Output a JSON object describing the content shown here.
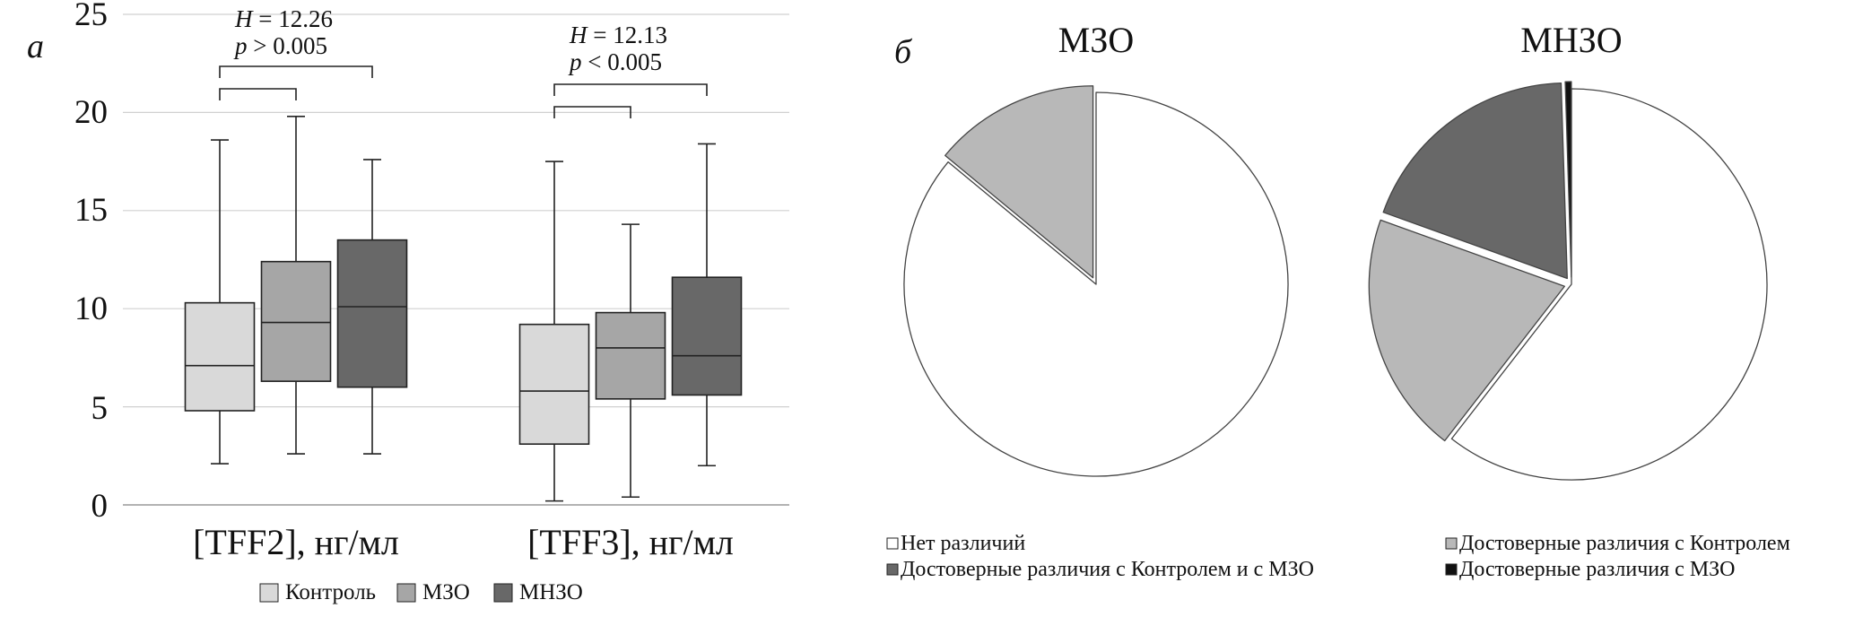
{
  "colors": {
    "control": "#d9d9d9",
    "mzo": "#a6a6a6",
    "mnzo": "#686868",
    "no_diff": "#ffffff",
    "diff_control": "#b8b8b8",
    "diff_both": "#686868",
    "diff_mzo": "#111111",
    "grid": "#d0d0d0",
    "stroke": "#222222"
  },
  "chart_data": [
    {
      "type": "box",
      "panel_label": "а",
      "categories": [
        "[TFF2], нг/мл",
        "[TFF3], нг/мл"
      ],
      "ylim": [
        0,
        25
      ],
      "yticks": [
        "0",
        "5",
        "10",
        "15",
        "20",
        "25"
      ],
      "grid": true,
      "legend_position": "bottom",
      "series": [
        {
          "name": "Контроль",
          "color_key": "control",
          "boxes": [
            {
              "min": 2.1,
              "q1": 4.8,
              "median": 7.1,
              "q3": 10.3,
              "max": 18.6
            },
            {
              "min": 0.2,
              "q1": 3.1,
              "median": 5.8,
              "q3": 9.2,
              "max": 17.5
            }
          ]
        },
        {
          "name": "МЗО",
          "color_key": "mzo",
          "boxes": [
            {
              "min": 2.6,
              "q1": 6.3,
              "median": 9.3,
              "q3": 12.4,
              "max": 19.8
            },
            {
              "min": 0.4,
              "q1": 5.4,
              "median": 8.0,
              "q3": 9.8,
              "max": 14.3
            }
          ]
        },
        {
          "name": "МНЗО",
          "color_key": "mnzo",
          "boxes": [
            {
              "min": 2.6,
              "q1": 6.0,
              "median": 10.1,
              "q3": 13.5,
              "max": 17.6
            },
            {
              "min": 2.0,
              "q1": 5.6,
              "median": 7.6,
              "q3": 11.6,
              "max": 18.4
            }
          ]
        }
      ],
      "annotations": [
        {
          "group": 0,
          "h": "12.26",
          "p": "> 0.005"
        },
        {
          "group": 1,
          "h": "12.13",
          "p": "< 0.005"
        }
      ],
      "brackets": [
        {
          "group": 0,
          "from": 0,
          "to": 1,
          "level": "low"
        },
        {
          "group": 0,
          "from": 0,
          "to": 2,
          "level": "high"
        },
        {
          "group": 1,
          "from": 0,
          "to": 1,
          "level": "low"
        },
        {
          "group": 1,
          "from": 0,
          "to": 2,
          "level": "high"
        }
      ]
    },
    {
      "type": "pie",
      "panel_label": "б",
      "pies": [
        {
          "title": "МЗО",
          "slices": [
            {
              "category": "Нет различий",
              "value": 86,
              "color_key": "no_diff"
            },
            {
              "category": "Достоверные различия с Контролем",
              "value": 14,
              "color_key": "diff_control"
            }
          ]
        },
        {
          "title": "МНЗО",
          "slices": [
            {
              "category": "Нет различий",
              "value": 60.5,
              "color_key": "no_diff"
            },
            {
              "category": "Достоверные различия с Контролем",
              "value": 20,
              "color_key": "diff_control"
            },
            {
              "category": "Достоверные различия с Контролем и с МЗО",
              "value": 19,
              "color_key": "diff_both"
            },
            {
              "category": "Достоверные различия с МЗО",
              "value": 0.5,
              "color_key": "diff_mzo"
            }
          ]
        }
      ],
      "legend_position": "bottom",
      "legend": [
        {
          "label": "Нет различий",
          "color_key": "no_diff"
        },
        {
          "label": "Достоверные различия с Контролем",
          "color_key": "diff_control"
        },
        {
          "label": "Достоверные различия с Контролем и с МЗО",
          "color_key": "diff_both"
        },
        {
          "label": "Достоверные различия с МЗО",
          "color_key": "diff_mzo"
        }
      ]
    }
  ]
}
